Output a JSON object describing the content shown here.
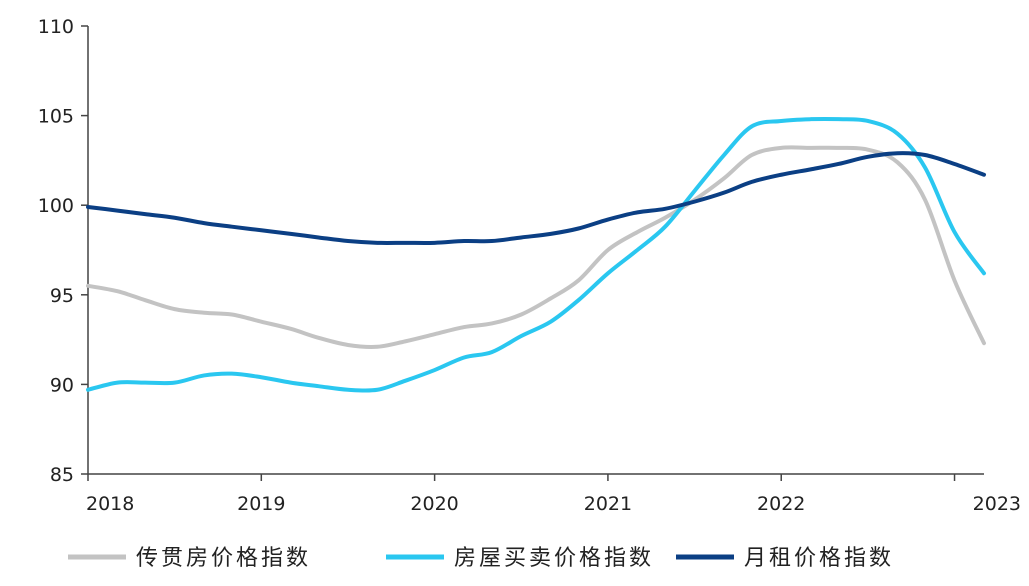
{
  "chart_data": {
    "type": "line",
    "title": "",
    "xlabel": "",
    "ylabel": "",
    "ylim": [
      85,
      110
    ],
    "xlim": [
      2018.0,
      2023.17
    ],
    "y_ticks": [
      "85",
      "90",
      "95",
      "100",
      "105",
      "110"
    ],
    "x_ticks": [
      "2018",
      "2019",
      "2020",
      "2021",
      "2022",
      "2023"
    ],
    "grid": false,
    "legend_position": "bottom",
    "series": [
      {
        "name": "传贯房价格指数",
        "color": "#c3c3c3",
        "x": [
          2018.0,
          2018.17,
          2018.33,
          2018.5,
          2018.67,
          2018.83,
          2019.0,
          2019.17,
          2019.33,
          2019.5,
          2019.67,
          2019.83,
          2020.0,
          2020.17,
          2020.33,
          2020.5,
          2020.67,
          2020.83,
          2021.0,
          2021.17,
          2021.33,
          2021.5,
          2021.67,
          2021.83,
          2022.0,
          2022.17,
          2022.33,
          2022.5,
          2022.67,
          2022.83,
          2023.0,
          2023.17
        ],
        "y": [
          95.5,
          95.2,
          94.7,
          94.2,
          94.0,
          93.9,
          93.5,
          93.1,
          92.6,
          92.2,
          92.1,
          92.4,
          92.8,
          93.2,
          93.4,
          93.9,
          94.8,
          95.8,
          97.5,
          98.5,
          99.3,
          100.3,
          101.5,
          102.8,
          103.2,
          103.2,
          103.2,
          103.1,
          102.4,
          100.3,
          95.8,
          92.3
        ]
      },
      {
        "name": "房屋买卖价格指数",
        "color": "#2ac7f0",
        "x": [
          2018.0,
          2018.17,
          2018.33,
          2018.5,
          2018.67,
          2018.83,
          2019.0,
          2019.17,
          2019.33,
          2019.5,
          2019.67,
          2019.83,
          2020.0,
          2020.17,
          2020.33,
          2020.5,
          2020.67,
          2020.83,
          2021.0,
          2021.17,
          2021.33,
          2021.5,
          2021.67,
          2021.83,
          2022.0,
          2022.17,
          2022.33,
          2022.5,
          2022.67,
          2022.83,
          2023.0,
          2023.17
        ],
        "y": [
          89.7,
          90.1,
          90.1,
          90.1,
          90.5,
          90.6,
          90.4,
          90.1,
          89.9,
          89.7,
          89.7,
          90.2,
          90.8,
          91.5,
          91.8,
          92.7,
          93.5,
          94.7,
          96.2,
          97.5,
          98.8,
          100.8,
          102.8,
          104.4,
          104.7,
          104.8,
          104.8,
          104.7,
          104.0,
          102.1,
          98.5,
          96.2
        ]
      },
      {
        "name": "月租价格指数",
        "color": "#0b3f84",
        "x": [
          2018.0,
          2018.17,
          2018.33,
          2018.5,
          2018.67,
          2018.83,
          2019.0,
          2019.17,
          2019.33,
          2019.5,
          2019.67,
          2019.83,
          2020.0,
          2020.17,
          2020.33,
          2020.5,
          2020.67,
          2020.83,
          2021.0,
          2021.17,
          2021.33,
          2021.5,
          2021.67,
          2021.83,
          2022.0,
          2022.17,
          2022.33,
          2022.5,
          2022.67,
          2022.83,
          2023.0,
          2023.17
        ],
        "y": [
          99.9,
          99.7,
          99.5,
          99.3,
          99.0,
          98.8,
          98.6,
          98.4,
          98.2,
          98.0,
          97.9,
          97.9,
          97.9,
          98.0,
          98.0,
          98.2,
          98.4,
          98.7,
          99.2,
          99.6,
          99.8,
          100.2,
          100.7,
          101.3,
          101.7,
          102.0,
          102.3,
          102.7,
          102.9,
          102.8,
          102.3,
          101.7
        ]
      }
    ]
  }
}
